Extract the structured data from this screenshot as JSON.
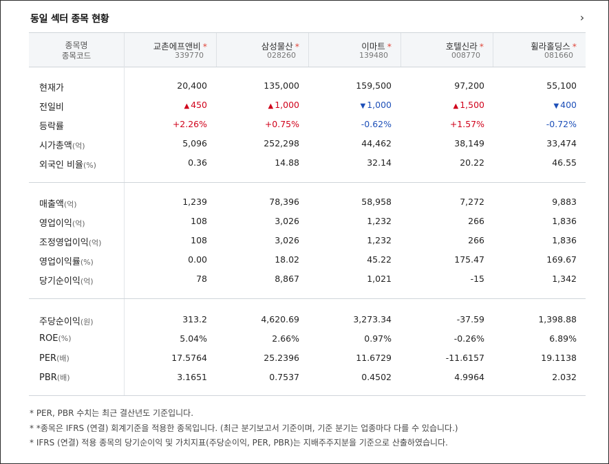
{
  "header": {
    "title": "동일 섹터 종목 현황",
    "more_icon": "chevron-right-icon"
  },
  "columns_header": {
    "name_label": "종목명",
    "code_label": "종목코드",
    "marker": "*"
  },
  "stocks": [
    {
      "name": "교촌에프앤비",
      "code": "339770"
    },
    {
      "name": "삼성물산",
      "code": "028260"
    },
    {
      "name": "이마트",
      "code": "139480"
    },
    {
      "name": "호텔신라",
      "code": "008770"
    },
    {
      "name": "휠라홀딩스",
      "code": "081660"
    }
  ],
  "colors": {
    "up": "#d0021b",
    "down": "#1d4fb8"
  },
  "sections": [
    {
      "rows": [
        {
          "label": "현재가",
          "unit": "",
          "values": [
            "20,400",
            "135,000",
            "159,500",
            "97,200",
            "55,100"
          ]
        },
        {
          "label": "전일비",
          "unit": "",
          "type": "change",
          "values": [
            "450",
            "1,000",
            "1,000",
            "1,500",
            "400"
          ],
          "directions": [
            "up",
            "up",
            "down",
            "up",
            "down"
          ]
        },
        {
          "label": "등락률",
          "unit": "",
          "type": "rate",
          "values": [
            "+2.26%",
            "+0.75%",
            "-0.62%",
            "+1.57%",
            "-0.72%"
          ],
          "directions": [
            "up",
            "up",
            "down",
            "up",
            "down"
          ]
        },
        {
          "label": "시가총액",
          "unit": "(억)",
          "values": [
            "5,096",
            "252,298",
            "44,462",
            "38,149",
            "33,474"
          ]
        },
        {
          "label": "외국인 비율",
          "unit": "(%)",
          "values": [
            "0.36",
            "14.88",
            "32.14",
            "20.22",
            "46.55"
          ]
        }
      ]
    },
    {
      "rows": [
        {
          "label": "매출액",
          "unit": "(억)",
          "values": [
            "1,239",
            "78,396",
            "58,958",
            "7,272",
            "9,883"
          ]
        },
        {
          "label": "영업이익",
          "unit": "(억)",
          "values": [
            "108",
            "3,026",
            "1,232",
            "266",
            "1,836"
          ]
        },
        {
          "label": "조정영업이익",
          "unit": "(억)",
          "values": [
            "108",
            "3,026",
            "1,232",
            "266",
            "1,836"
          ]
        },
        {
          "label": "영업이익률",
          "unit": "(%)",
          "values": [
            "0.00",
            "18.02",
            "45.22",
            "175.47",
            "169.67"
          ]
        },
        {
          "label": "당기순이익",
          "unit": "(억)",
          "values": [
            "78",
            "8,867",
            "1,021",
            "-15",
            "1,342"
          ]
        }
      ]
    },
    {
      "rows": [
        {
          "label": "주당순이익",
          "unit": "(원)",
          "values": [
            "313.2",
            "4,620.69",
            "3,273.34",
            "-37.59",
            "1,398.88"
          ]
        },
        {
          "label": "ROE",
          "unit": "(%)",
          "values": [
            "5.04%",
            "2.66%",
            "0.97%",
            "-0.26%",
            "6.89%"
          ]
        },
        {
          "label": "PER",
          "unit": "(배)",
          "values": [
            "17.5764",
            "25.2396",
            "11.6729",
            "-11.6157",
            "19.1138"
          ]
        },
        {
          "label": "PBR",
          "unit": "(배)",
          "values": [
            "3.1651",
            "0.7537",
            "0.4502",
            "4.9964",
            "2.032"
          ]
        }
      ]
    }
  ],
  "notes": [
    "* PER, PBR 수치는 최근 결산년도 기준입니다.",
    "* *종목은 IFRS (연결) 회계기준을 적용한 종목입니다. (최근 분기보고서 기준이며, 기준 분기는 업종마다 다를 수 있습니다.)",
    "* IFRS (연결) 적용 종목의 당기순이익 및 가치지표(주당순이익, PER, PBR)는 지배주주지분을 기준으로 산출하였습니다."
  ]
}
